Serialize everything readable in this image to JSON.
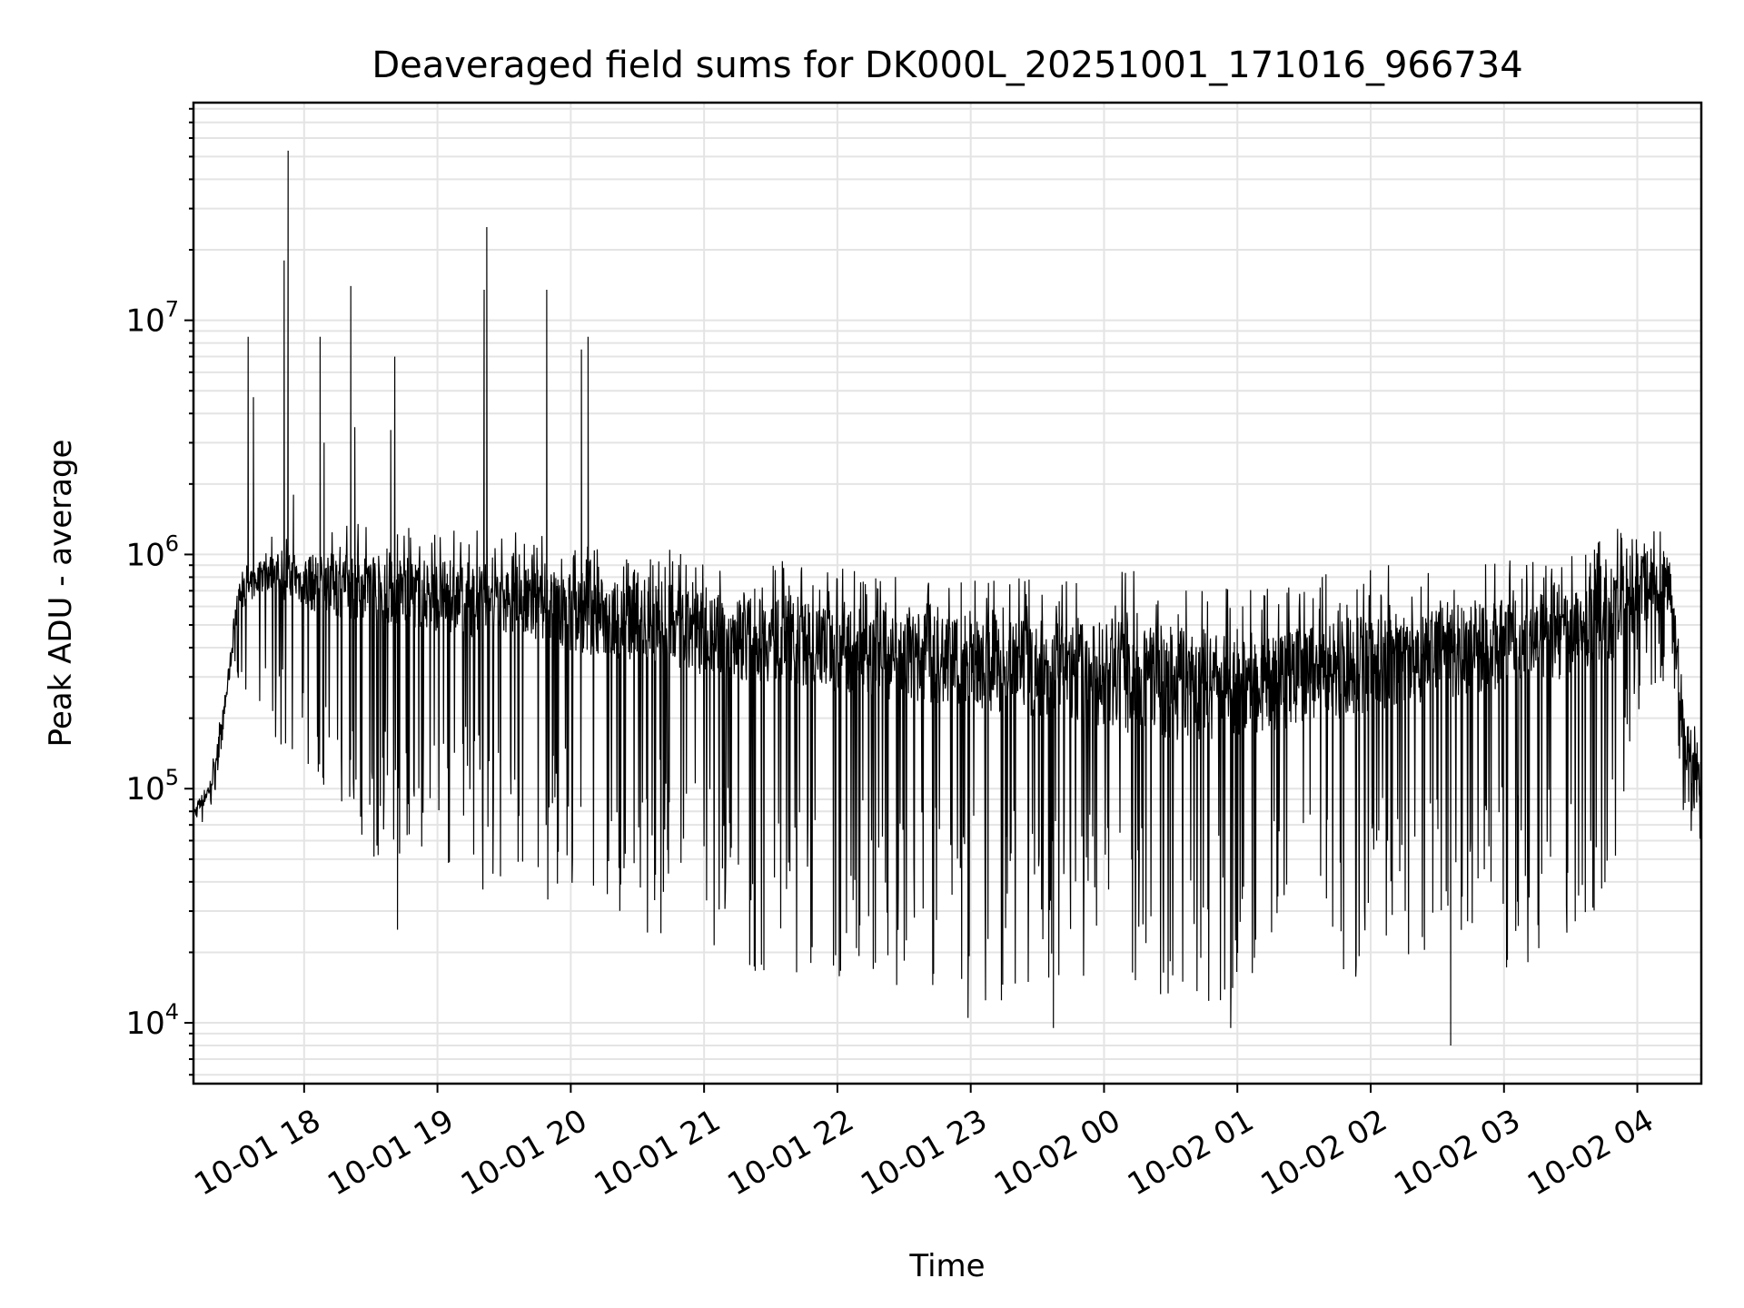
{
  "chart_data": {
    "type": "line",
    "title": "Deaveraged field sums for DK000L_20251001_171016_966734",
    "xlabel": "Time",
    "ylabel": "Peak ADU - average",
    "yscale": "log",
    "ylim": [
      5500,
      85000000
    ],
    "xlim_hours": [
      17.17,
      28.48
    ],
    "grid": true,
    "x_ticks": [
      {
        "hour": 18,
        "label": "10-01 18"
      },
      {
        "hour": 19,
        "label": "10-01 19"
      },
      {
        "hour": 20,
        "label": "10-01 20"
      },
      {
        "hour": 21,
        "label": "10-01 21"
      },
      {
        "hour": 22,
        "label": "10-01 22"
      },
      {
        "hour": 23,
        "label": "10-01 23"
      },
      {
        "hour": 24,
        "label": "10-02 00"
      },
      {
        "hour": 25,
        "label": "10-02 01"
      },
      {
        "hour": 26,
        "label": "10-02 02"
      },
      {
        "hour": 27,
        "label": "10-02 03"
      },
      {
        "hour": 28,
        "label": "10-02 04"
      }
    ],
    "y_ticks": [
      {
        "value": 10000,
        "base": "10",
        "exp": "4"
      },
      {
        "value": 100000,
        "base": "10",
        "exp": "5"
      },
      {
        "value": 1000000,
        "base": "10",
        "exp": "6"
      },
      {
        "value": 10000000,
        "base": "10",
        "exp": "7"
      }
    ],
    "series": [
      {
        "name": "Peak ADU - average",
        "color": "#000000",
        "envelope": {
          "hours": [
            17.17,
            17.3,
            17.4,
            17.5,
            17.7,
            18.0,
            18.5,
            19.0,
            19.5,
            20.0,
            20.5,
            21.0,
            21.5,
            22.0,
            22.5,
            23.0,
            23.5,
            24.0,
            24.5,
            25.0,
            25.5,
            26.0,
            26.5,
            27.0,
            27.5,
            27.8,
            28.0,
            28.25,
            28.35,
            28.48
          ],
          "upper": [
            90000,
            120000,
            250000,
            800000,
            1200000,
            1300000,
            1400000,
            1300000,
            1300000,
            1200000,
            1100000,
            1000000,
            950000,
            900000,
            850000,
            800000,
            800000,
            850000,
            850000,
            700000,
            800000,
            900000,
            900000,
            950000,
            1000000,
            1200000,
            1600000,
            1200000,
            300000,
            150000
          ],
          "lower": [
            60000,
            80000,
            150000,
            300000,
            200000,
            90000,
            50000,
            40000,
            35000,
            30000,
            25000,
            20000,
            15000,
            14000,
            13000,
            12000,
            12000,
            13000,
            13000,
            11000,
            14000,
            15000,
            16000,
            17000,
            20000,
            30000,
            200000,
            300000,
            70000,
            60000
          ],
          "typical": [
            75000,
            100000,
            200000,
            600000,
            800000,
            700000,
            650000,
            600000,
            550000,
            500000,
            450000,
            400000,
            380000,
            350000,
            320000,
            300000,
            280000,
            260000,
            240000,
            230000,
            260000,
            300000,
            330000,
            360000,
            400000,
            450000,
            650000,
            700000,
            150000,
            100000
          ]
        },
        "spikes": [
          {
            "hour": 17.58,
            "value": 8500000
          },
          {
            "hour": 17.62,
            "value": 4700000
          },
          {
            "hour": 17.85,
            "value": 18000000
          },
          {
            "hour": 17.88,
            "value": 53000000
          },
          {
            "hour": 17.92,
            "value": 1800000
          },
          {
            "hour": 18.12,
            "value": 8500000
          },
          {
            "hour": 18.15,
            "value": 3000000
          },
          {
            "hour": 18.35,
            "value": 14000000
          },
          {
            "hour": 18.38,
            "value": 3500000
          },
          {
            "hour": 18.68,
            "value": 7000000
          },
          {
            "hour": 18.65,
            "value": 3400000
          },
          {
            "hour": 19.35,
            "value": 13500000
          },
          {
            "hour": 19.37,
            "value": 25000000
          },
          {
            "hour": 19.82,
            "value": 13500000
          },
          {
            "hour": 20.08,
            "value": 7500000
          },
          {
            "hour": 20.13,
            "value": 8500000
          }
        ],
        "dips": [
          {
            "hour": 18.7,
            "value": 25000
          },
          {
            "hour": 22.98,
            "value": 10500
          },
          {
            "hour": 23.62,
            "value": 9500
          },
          {
            "hour": 24.95,
            "value": 9500
          },
          {
            "hour": 26.6,
            "value": 8000
          }
        ]
      }
    ]
  }
}
